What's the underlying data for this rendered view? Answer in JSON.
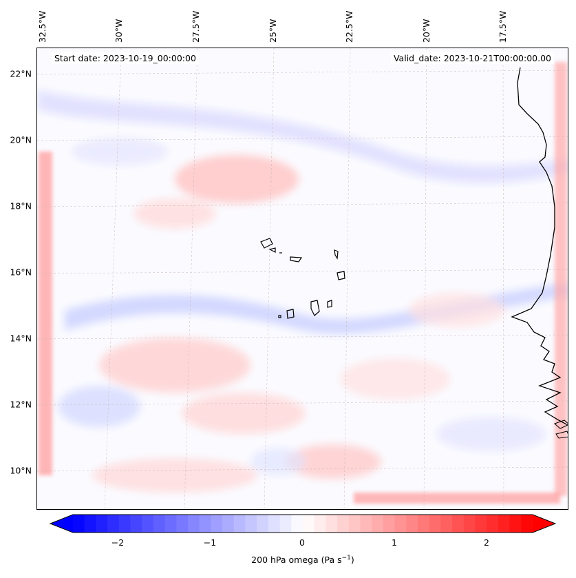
{
  "header": {
    "start_date": "Start date: 2023-10-19_00:00:00",
    "valid_date": "Valid_date: 2023-10-21T00:00:00.00"
  },
  "map": {
    "latitude_labels": [
      "22°N",
      "20°N",
      "18°N",
      "16°N",
      "14°N",
      "12°N",
      "10°N"
    ],
    "longitude_labels": [
      "32.5°W",
      "30°W",
      "27.5°W",
      "25°W",
      "22.5°W",
      "20°W",
      "17.5°W"
    ],
    "features": [
      "west-african-coastline",
      "cape-verde-islands"
    ]
  },
  "colorbar": {
    "variable": "200 hPa omega",
    "unit_prefix": "(Pa s",
    "unit_exponent": "−1",
    "unit_suffix": ")",
    "tick_labels": [
      "−2",
      "−1",
      "0",
      "1",
      "2"
    ],
    "range": [
      -2.7,
      2.7
    ],
    "negative_color": "#0000ff",
    "zero_color": "#ffffff",
    "positive_color": "#ff0000"
  }
}
